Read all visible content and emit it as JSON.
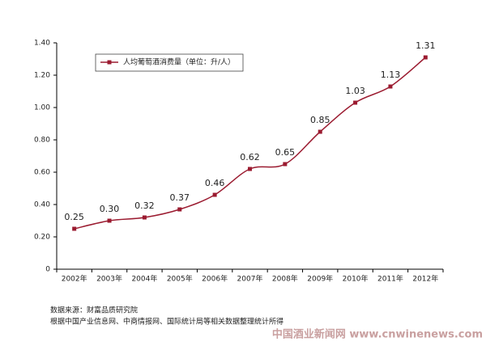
{
  "chart_data": {
    "type": "line",
    "categories": [
      "2002年",
      "2003年",
      "2004年",
      "2005年",
      "2006年",
      "2007年",
      "2008年",
      "2009年",
      "2010年",
      "2011年",
      "2012年"
    ],
    "series": [
      {
        "name": "人均葡萄酒消费量（单位：升/人）",
        "color": "#9b1b30",
        "values": [
          0.25,
          0.3,
          0.32,
          0.37,
          0.46,
          0.62,
          0.65,
          0.85,
          1.03,
          1.13,
          1.31
        ],
        "value_labels": [
          "0.25",
          "0.30",
          "0.32",
          "0.37",
          "0.46",
          "0.62",
          "0.65",
          "0.85",
          "1.03",
          "1.13",
          "1.31"
        ]
      }
    ],
    "ylim": [
      0,
      1.4
    ],
    "yticks": [
      0,
      {
        "value": 0.2,
        "label": "0.20"
      },
      {
        "value": 0.4,
        "label": "0.40"
      },
      {
        "value": 0.6,
        "label": "0.60"
      },
      {
        "value": 0.8,
        "label": "0.80"
      },
      {
        "value": 1.0,
        "label": "1.00"
      },
      {
        "value": 1.2,
        "label": "1.20"
      },
      {
        "value": 1.4,
        "label": "1.40"
      }
    ],
    "grid": false,
    "legend": "top-left",
    "notes": [
      "数据来源：财富品质研究院",
      "根据中国产业信息网、中商情报网、国际统计局等相关数据整理统计所得"
    ],
    "watermark": "中国酒业新闻网 www.cnwinenews.com"
  }
}
